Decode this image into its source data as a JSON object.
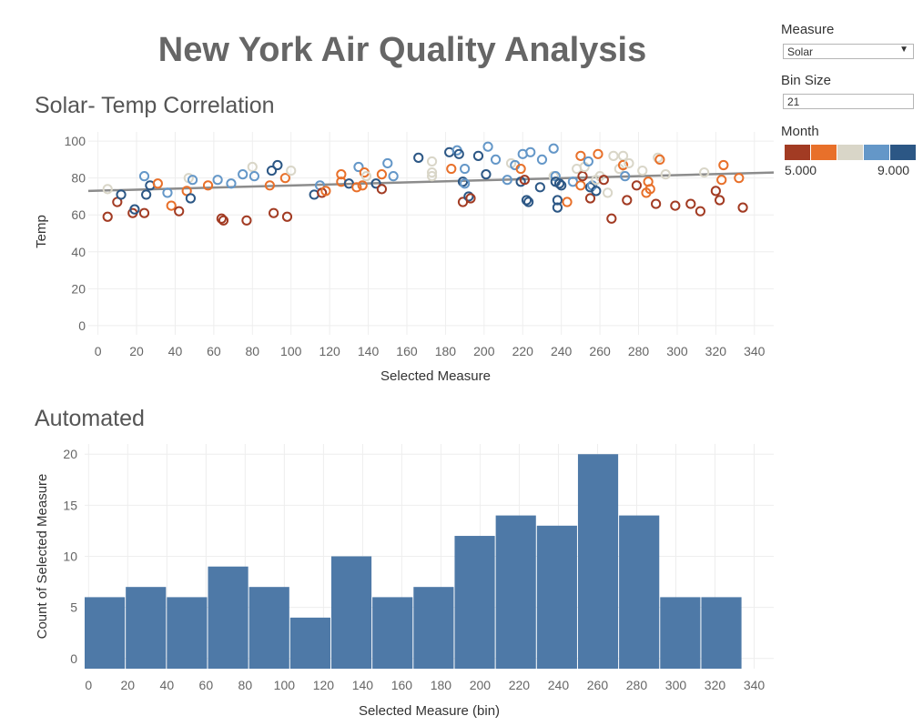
{
  "dashboard": {
    "title": "New York Air Quality Analysis"
  },
  "controls": {
    "measure_label": "Measure",
    "measure_value": "Solar",
    "bin_size_label": "Bin Size",
    "bin_size_value": "21",
    "month_label": "Month",
    "month_min": "5.000",
    "month_max": "9.000",
    "month_colors": [
      "#a23b23",
      "#e8702a",
      "#d9d6c8",
      "#6497c8",
      "#2c5785"
    ]
  },
  "chart_data": [
    {
      "type": "scatter",
      "title": "Solar- Temp Correlation",
      "xlabel": "Selected Measure",
      "ylabel": "Temp",
      "xlim": [
        -5,
        350
      ],
      "ylim": [
        -5,
        105
      ],
      "xticks": [
        0,
        20,
        40,
        60,
        80,
        100,
        120,
        140,
        160,
        180,
        200,
        220,
        240,
        260,
        280,
        300,
        320,
        340
      ],
      "yticks": [
        0,
        20,
        40,
        60,
        80,
        100
      ],
      "trend_line": {
        "x": [
          -5,
          350
        ],
        "y": [
          73,
          83
        ]
      },
      "grid": true,
      "color_by": "Month",
      "points": [
        [
          5,
          74,
          7
        ],
        [
          5,
          59,
          5
        ],
        [
          10,
          67,
          5
        ],
        [
          12,
          71,
          9
        ],
        [
          18,
          61,
          5
        ],
        [
          19,
          63,
          9
        ],
        [
          24,
          61,
          5
        ],
        [
          25,
          71,
          9
        ],
        [
          24,
          81,
          8
        ],
        [
          27,
          76,
          9
        ],
        [
          31,
          77,
          6
        ],
        [
          36,
          72,
          8
        ],
        [
          38,
          65,
          6
        ],
        [
          42,
          62,
          5
        ],
        [
          46,
          73,
          6
        ],
        [
          47,
          80,
          7
        ],
        [
          49,
          79,
          8
        ],
        [
          48,
          69,
          9
        ],
        [
          57,
          76,
          6
        ],
        [
          62,
          79,
          8
        ],
        [
          64,
          58,
          5
        ],
        [
          65,
          57,
          5
        ],
        [
          69,
          77,
          8
        ],
        [
          75,
          82,
          8
        ],
        [
          77,
          57,
          5
        ],
        [
          80,
          86,
          7
        ],
        [
          81,
          81,
          8
        ],
        [
          89,
          76,
          6
        ],
        [
          90,
          84,
          9
        ],
        [
          91,
          61,
          5
        ],
        [
          93,
          87,
          9
        ],
        [
          97,
          80,
          6
        ],
        [
          98,
          59,
          5
        ],
        [
          100,
          84,
          7
        ],
        [
          112,
          71,
          9
        ],
        [
          115,
          76,
          8
        ],
        [
          116,
          72,
          5
        ],
        [
          118,
          73,
          6
        ],
        [
          126,
          78,
          6
        ],
        [
          126,
          82,
          6
        ],
        [
          130,
          77,
          9
        ],
        [
          134,
          75,
          6
        ],
        [
          135,
          86,
          8
        ],
        [
          137,
          76,
          6
        ],
        [
          138,
          83,
          6
        ],
        [
          139,
          81,
          7
        ],
        [
          144,
          77,
          9
        ],
        [
          147,
          74,
          5
        ],
        [
          147,
          82,
          6
        ],
        [
          150,
          88,
          8
        ],
        [
          153,
          81,
          8
        ],
        [
          166,
          91,
          9
        ],
        [
          173,
          89,
          7
        ],
        [
          173,
          83,
          7
        ],
        [
          173,
          81,
          7
        ],
        [
          182,
          94,
          9
        ],
        [
          183,
          85,
          6
        ],
        [
          186,
          95,
          8
        ],
        [
          187,
          93,
          9
        ],
        [
          189,
          67,
          5
        ],
        [
          189,
          78,
          9
        ],
        [
          190,
          77,
          8
        ],
        [
          190,
          85,
          8
        ],
        [
          192,
          70,
          9
        ],
        [
          193,
          69,
          5
        ],
        [
          197,
          92,
          9
        ],
        [
          201,
          82,
          9
        ],
        [
          202,
          97,
          8
        ],
        [
          206,
          90,
          8
        ],
        [
          212,
          79,
          8
        ],
        [
          214,
          88,
          7
        ],
        [
          216,
          87,
          8
        ],
        [
          219,
          85,
          6
        ],
        [
          219,
          78,
          9
        ],
        [
          220,
          93,
          8
        ],
        [
          221,
          79,
          5
        ],
        [
          222,
          68,
          9
        ],
        [
          223,
          67,
          9
        ],
        [
          224,
          94,
          8
        ],
        [
          229,
          75,
          9
        ],
        [
          230,
          90,
          8
        ],
        [
          236,
          81,
          7
        ],
        [
          236,
          96,
          8
        ],
        [
          237,
          81,
          8
        ],
        [
          237,
          78,
          9
        ],
        [
          238,
          64,
          9
        ],
        [
          238,
          68,
          9
        ],
        [
          239,
          77,
          9
        ],
        [
          240,
          76,
          9
        ],
        [
          243,
          67,
          6
        ],
        [
          246,
          78,
          8
        ],
        [
          248,
          85,
          7
        ],
        [
          250,
          92,
          6
        ],
        [
          250,
          76,
          6
        ],
        [
          251,
          81,
          5
        ],
        [
          252,
          86,
          7
        ],
        [
          254,
          89,
          8
        ],
        [
          255,
          75,
          9
        ],
        [
          255,
          69,
          5
        ],
        [
          256,
          76,
          8
        ],
        [
          258,
          79,
          7
        ],
        [
          258,
          73,
          9
        ],
        [
          259,
          93,
          6
        ],
        [
          260,
          81,
          7
        ],
        [
          262,
          79,
          5
        ],
        [
          264,
          72,
          7
        ],
        [
          266,
          58,
          5
        ],
        [
          267,
          92,
          7
        ],
        [
          270,
          85,
          7
        ],
        [
          272,
          92,
          7
        ],
        [
          272,
          87,
          6
        ],
        [
          273,
          81,
          8
        ],
        [
          274,
          68,
          5
        ],
        [
          275,
          88,
          7
        ],
        [
          279,
          76,
          5
        ],
        [
          282,
          84,
          7
        ],
        [
          284,
          72,
          6
        ],
        [
          285,
          78,
          6
        ],
        [
          286,
          74,
          6
        ],
        [
          289,
          66,
          5
        ],
        [
          290,
          91,
          7
        ],
        [
          291,
          90,
          6
        ],
        [
          294,
          82,
          7
        ],
        [
          299,
          65,
          5
        ],
        [
          307,
          66,
          5
        ],
        [
          312,
          62,
          5
        ],
        [
          314,
          83,
          7
        ],
        [
          320,
          73,
          5
        ],
        [
          322,
          68,
          5
        ],
        [
          323,
          79,
          6
        ],
        [
          324,
          87,
          6
        ],
        [
          332,
          80,
          6
        ],
        [
          334,
          64,
          5
        ]
      ]
    },
    {
      "type": "bar",
      "title": "Automated",
      "xlabel": "Selected Measure (bin)",
      "ylabel": "Count of Selected Measure",
      "bin_size": 21,
      "xlim": [
        -2,
        350
      ],
      "ylim": [
        -1,
        21
      ],
      "xticks": [
        0,
        20,
        40,
        60,
        80,
        100,
        120,
        140,
        160,
        180,
        200,
        220,
        240,
        260,
        280,
        300,
        320,
        340
      ],
      "yticks": [
        0,
        5,
        10,
        15,
        20
      ],
      "bin_starts": [
        -2,
        19,
        40,
        61,
        82,
        103,
        124,
        145,
        166,
        187,
        208,
        229,
        250,
        271,
        292,
        313
      ],
      "values": [
        6,
        7,
        6,
        9,
        7,
        4,
        10,
        6,
        7,
        12,
        14,
        13,
        20,
        14,
        6,
        6
      ],
      "bar_color": "#4e79a7",
      "grid": true
    }
  ]
}
